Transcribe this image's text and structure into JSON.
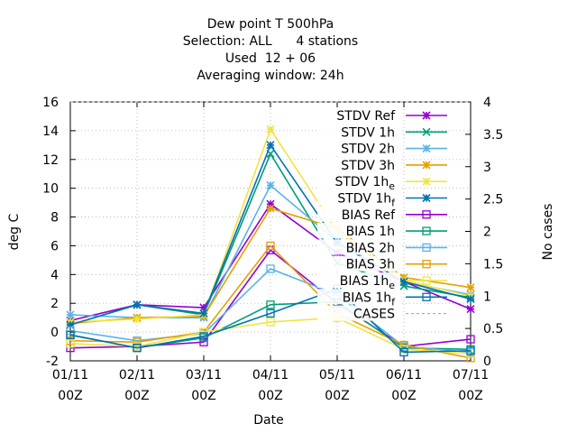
{
  "chart_data": {
    "type": "line",
    "title_lines": [
      "Dew point T 500hPa",
      "Selection: ALL      4 stations",
      "Used  12 + 06",
      "Averaging window: 24h"
    ],
    "xlabel": "Date",
    "ylabel": "deg C",
    "y2label": "No cases",
    "categories": [
      {
        "date": "01/11",
        "hour": "00Z"
      },
      {
        "date": "02/11",
        "hour": "00Z"
      },
      {
        "date": "03/11",
        "hour": "00Z"
      },
      {
        "date": "04/11",
        "hour": "00Z"
      },
      {
        "date": "05/11",
        "hour": "00Z"
      },
      {
        "date": "06/11",
        "hour": "00Z"
      },
      {
        "date": "07/11",
        "hour": "00Z"
      }
    ],
    "ylim": [
      -2,
      16
    ],
    "yticks": [
      -2,
      0,
      2,
      4,
      6,
      8,
      10,
      12,
      14,
      16
    ],
    "y2lim": [
      0,
      4
    ],
    "y2ticks": [
      "0",
      "0.5",
      "1",
      "1.5",
      "2",
      "2.5",
      "3",
      "3.5",
      "4"
    ],
    "grid": true,
    "legend_position": "top-right",
    "series": [
      {
        "name": "STDV Ref",
        "sub": "",
        "color": "#9400d3",
        "marker": "star",
        "values": [
          0.8,
          1.9,
          1.7,
          8.9,
          5.5,
          3.5,
          1.6
        ]
      },
      {
        "name": "STDV 1h",
        "sub": "",
        "color": "#009e73",
        "marker": "cross",
        "values": [
          0.5,
          1.9,
          1.2,
          12.4,
          4.8,
          3.2,
          2.4
        ]
      },
      {
        "name": "STDV 2h",
        "sub": "",
        "color": "#56b4e9",
        "marker": "star",
        "values": [
          1.2,
          1.0,
          1.0,
          10.2,
          6.3,
          3.5,
          2.6
        ]
      },
      {
        "name": "STDV 3h",
        "sub": "",
        "color": "#e69f00",
        "marker": "star",
        "values": [
          0.6,
          1.0,
          1.1,
          8.6,
          7.2,
          3.8,
          3.1
        ]
      },
      {
        "name": "STDV 1h",
        "sub": "e",
        "color": "#f0e442",
        "marker": "star",
        "values": [
          0.7,
          0.9,
          1.2,
          14.1,
          7.0,
          3.6,
          2.5
        ]
      },
      {
        "name": "STDV 1h",
        "sub": "f",
        "color": "#0072b2",
        "marker": "star",
        "values": [
          0.5,
          1.9,
          1.3,
          13.0,
          6.2,
          3.5,
          2.3
        ]
      },
      {
        "name": "BIAS Ref",
        "sub": "",
        "color": "#9400d3",
        "marker": "square",
        "values": [
          -1.1,
          -1.0,
          -0.7,
          5.7,
          2.0,
          -1.0,
          -0.5
        ]
      },
      {
        "name": "BIAS 1h",
        "sub": "",
        "color": "#009e73",
        "marker": "square",
        "values": [
          -0.2,
          -1.1,
          -0.4,
          1.9,
          2.1,
          -1.1,
          -1.2
        ]
      },
      {
        "name": "BIAS 2h",
        "sub": "",
        "color": "#56b4e9",
        "marker": "square",
        "values": [
          0.1,
          -0.6,
          -0.1,
          4.4,
          2.6,
          -1.0,
          -1.4
        ]
      },
      {
        "name": "BIAS 3h",
        "sub": "",
        "color": "#e69f00",
        "marker": "square",
        "values": [
          -0.6,
          -0.7,
          0.0,
          6.0,
          1.3,
          -0.9,
          -1.8
        ]
      },
      {
        "name": "BIAS 1h",
        "sub": "e",
        "color": "#f0e442",
        "marker": "square",
        "values": [
          -0.8,
          -1.0,
          0.0,
          0.7,
          1.0,
          -1.2,
          -1.5
        ]
      },
      {
        "name": "BIAS 1h",
        "sub": "f",
        "color": "#0072b2",
        "marker": "square",
        "values": [
          -0.2,
          -1.1,
          -0.3,
          1.3,
          3.0,
          -1.4,
          -1.3
        ]
      }
    ],
    "cases": {
      "name": "CASES",
      "color": "#a0a0a0",
      "values": [
        4,
        4,
        4,
        4,
        4,
        4,
        4
      ]
    }
  }
}
